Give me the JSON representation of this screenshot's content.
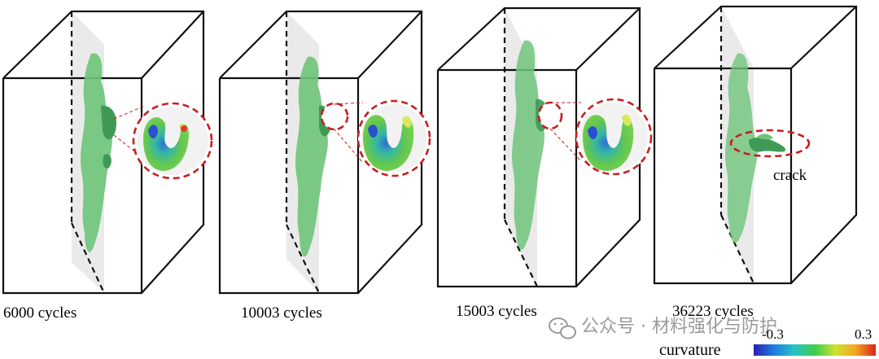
{
  "panels": [
    {
      "label": "6000 cycles"
    },
    {
      "label": "10003 cycles"
    },
    {
      "label": "15003 cycles"
    },
    {
      "label": "36223 cycles"
    }
  ],
  "annotation": {
    "crack_label": "crack"
  },
  "colorbar": {
    "title": "curvature",
    "min_label": "-0.3",
    "max_label": "0.3",
    "min": -0.3,
    "max": 0.3,
    "colors": [
      "#2a1fb4",
      "#1f7de0",
      "#27c2c9",
      "#3ccd4e",
      "#cde330",
      "#f5a623",
      "#d7261e"
    ]
  },
  "watermark": {
    "text": "公众号 · 材料强化与防护"
  },
  "colors": {
    "surface": "#6fc47a",
    "surface_dark": "#3f9a56",
    "highlight": "#d8e85a",
    "tip": "#e23a2a",
    "zoom_ring": "#c81e1e"
  }
}
